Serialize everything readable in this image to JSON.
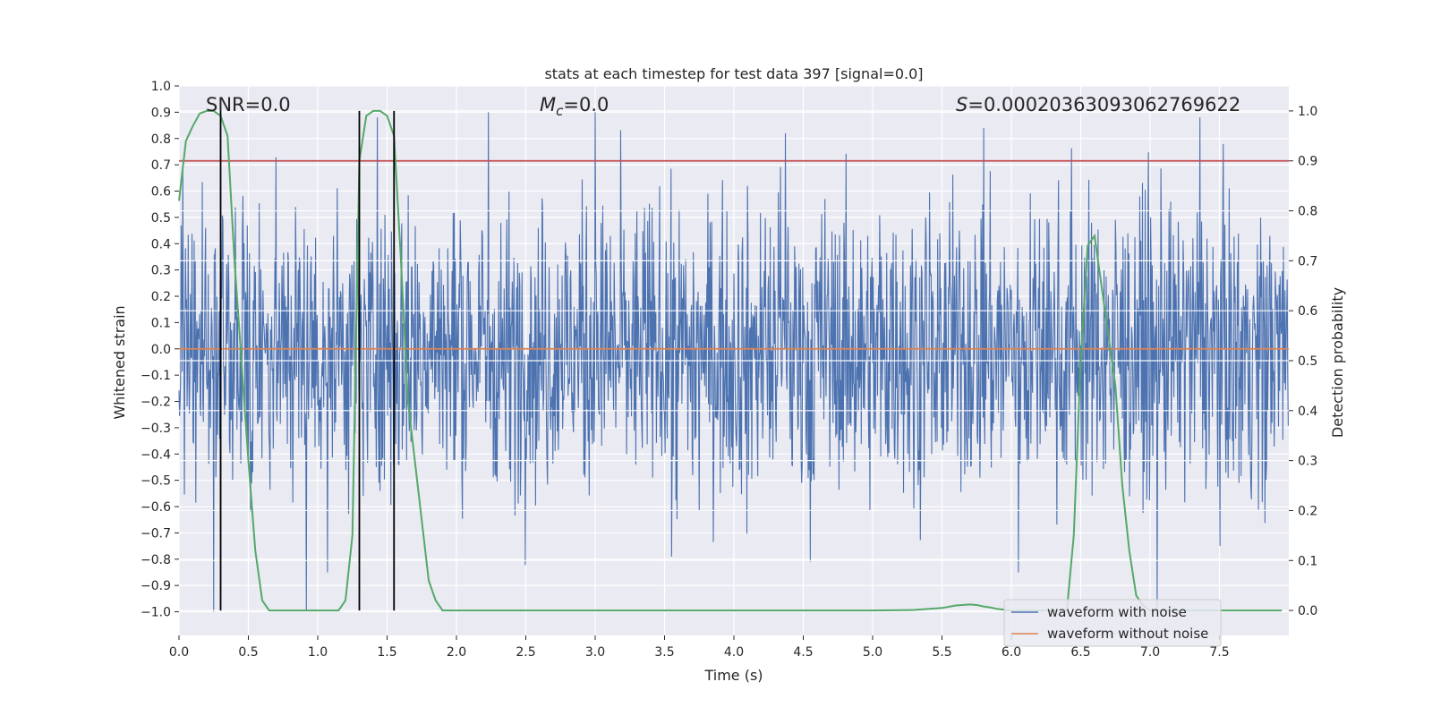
{
  "chart_data": {
    "type": "line",
    "title": "stats at each timestep for test data 397 [signal=0.0]",
    "xlabel": "Time (s)",
    "ylabel_left": "Whitened strain",
    "ylabel_right": "Detection probability",
    "xlim": [
      0.0,
      8.0
    ],
    "ylim_left": [
      -1.09,
      1.0
    ],
    "ylim_right": [
      -0.05,
      1.05
    ],
    "x_ticks": [
      0.0,
      0.5,
      1.0,
      1.5,
      2.0,
      2.5,
      3.0,
      3.5,
      4.0,
      4.5,
      5.0,
      5.5,
      6.0,
      6.5,
      7.0,
      7.5
    ],
    "x_tick_labels": [
      "0.0",
      "0.5",
      "1.0",
      "1.5",
      "2.0",
      "2.5",
      "3.0",
      "3.5",
      "4.0",
      "4.5",
      "5.0",
      "5.5",
      "6.0",
      "6.5",
      "7.0",
      "7.5"
    ],
    "y_ticks_left": [
      1.0,
      0.9,
      0.8,
      0.7,
      0.6,
      0.5,
      0.4,
      0.3,
      0.2,
      0.1,
      0.0,
      -0.1,
      -0.2,
      -0.3,
      -0.4,
      -0.5,
      -0.6,
      -0.7,
      -0.8,
      -0.9,
      -1.0
    ],
    "y_tick_labels_left": [
      "1.0",
      "0.9",
      "0.8",
      "0.7",
      "0.6",
      "0.5",
      "0.4",
      "0.3",
      "0.2",
      "0.1",
      "0.0",
      "−0.1",
      "−0.2",
      "−0.3",
      "−0.4",
      "−0.5",
      "−0.6",
      "−0.7",
      "−0.8",
      "−0.9",
      "−1.0"
    ],
    "y_ticks_right": [
      1.0,
      0.9,
      0.8,
      0.7,
      0.6,
      0.5,
      0.4,
      0.3,
      0.2,
      0.1,
      0.0
    ],
    "y_tick_labels_right": [
      "1.0",
      "0.9",
      "0.8",
      "0.7",
      "0.6",
      "0.5",
      "0.4",
      "0.3",
      "0.2",
      "0.1",
      "0.0"
    ],
    "annotations": {
      "snr": "SNR=0.0",
      "mc_symbol": "M",
      "mc_sub": "c",
      "mc_value": "=0.0",
      "s_symbol": "S",
      "s_value": "=0.00020363093062769622"
    },
    "legend": {
      "position": "lower-right",
      "entries": [
        "waveform with noise",
        "waveform without noise"
      ]
    },
    "colors": {
      "background": "#eaeaf2",
      "grid": "#ffffff",
      "noise": "#4c72b0",
      "clean": "#dd8452",
      "prob": "#55a868",
      "threshold": "#c44e52",
      "vlines": "#000000"
    },
    "threshold_right": 0.9,
    "vlines_x": [
      0.3,
      1.3,
      1.55
    ],
    "noise_waveform": {
      "samples": 2048,
      "amplitude_typical": 0.45,
      "peak_max": 0.9,
      "peak_min": -1.0,
      "peaks": [
        [
          0.25,
          -1.0
        ],
        [
          0.3,
          -0.97
        ],
        [
          1.43,
          0.88
        ],
        [
          2.23,
          0.9
        ],
        [
          3.0,
          0.9
        ],
        [
          4.37,
          0.82
        ],
        [
          5.8,
          0.84
        ],
        [
          7.36,
          0.88
        ],
        [
          7.05,
          -1.0
        ],
        [
          4.55,
          -0.81
        ],
        [
          3.55,
          -0.79
        ],
        [
          6.05,
          -0.85
        ],
        [
          1.07,
          -0.85
        ]
      ]
    },
    "clean_waveform": {
      "x": [
        0.0,
        8.0
      ],
      "y": [
        0.0,
        0.0
      ]
    },
    "probability_series": {
      "x": [
        0.0,
        0.05,
        0.1,
        0.15,
        0.2,
        0.25,
        0.3,
        0.35,
        0.4,
        0.45,
        0.5,
        0.55,
        0.6,
        0.65,
        0.7,
        0.8,
        0.9,
        1.0,
        1.1,
        1.15,
        1.2,
        1.25,
        1.3,
        1.35,
        1.4,
        1.45,
        1.5,
        1.55,
        1.6,
        1.65,
        1.7,
        1.75,
        1.8,
        1.85,
        1.9,
        1.95,
        2.0,
        2.5,
        3.0,
        3.5,
        4.0,
        4.5,
        5.0,
        5.3,
        5.5,
        5.6,
        5.7,
        5.75,
        5.8,
        5.85,
        5.9,
        6.0,
        6.1,
        6.2,
        6.3,
        6.4,
        6.45,
        6.5,
        6.55,
        6.6,
        6.65,
        6.7,
        6.75,
        6.8,
        6.85,
        6.9,
        6.95,
        7.0,
        7.5,
        7.95
      ],
      "y": [
        0.82,
        0.94,
        0.97,
        0.995,
        1.0,
        1.0,
        0.99,
        0.95,
        0.7,
        0.5,
        0.3,
        0.12,
        0.02,
        0.0,
        0.0,
        0.0,
        0.0,
        0.0,
        0.0,
        0.0,
        0.02,
        0.15,
        0.9,
        0.99,
        1.0,
        1.0,
        0.99,
        0.95,
        0.7,
        0.42,
        0.3,
        0.18,
        0.06,
        0.02,
        0.0,
        0.0,
        0.0,
        0.0,
        0.0,
        0.0,
        0.0,
        0.0,
        0.0,
        0.001,
        0.005,
        0.01,
        0.012,
        0.011,
        0.008,
        0.006,
        0.003,
        0.0,
        0.0,
        0.0,
        0.0,
        0.0,
        0.15,
        0.5,
        0.73,
        0.75,
        0.65,
        0.55,
        0.45,
        0.25,
        0.12,
        0.03,
        0.01,
        0.0,
        0.0,
        0.0
      ]
    }
  }
}
